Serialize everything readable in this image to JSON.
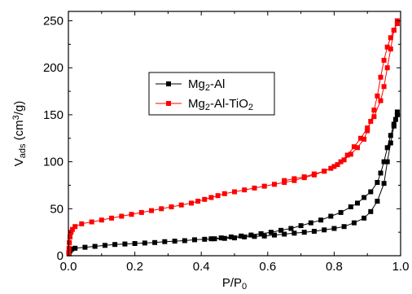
{
  "chart_data": {
    "type": "scatter",
    "xlabel": {
      "main": "P/P",
      "sub": "0"
    },
    "ylabel": {
      "main": "V",
      "sub": "ads",
      "unit_pre": " (cm",
      "sup": "3",
      "unit_post": "/g)"
    },
    "xlim": [
      0.0,
      1.0
    ],
    "ylim": [
      0,
      260
    ],
    "xticks": [
      "0.0",
      "0.2",
      "0.4",
      "0.6",
      "0.8",
      "1.0"
    ],
    "yticks": [
      "0",
      "50",
      "100",
      "150",
      "200",
      "250"
    ],
    "legend": {
      "position": "top-left"
    },
    "series": [
      {
        "name": {
          "p1": "Mg",
          "s1": "2",
          "p2": "-Al",
          "s2": "",
          "p3": ""
        },
        "color": "#000000",
        "adsorption": {
          "x": [
            0.002,
            0.005,
            0.01,
            0.02,
            0.05,
            0.08,
            0.11,
            0.14,
            0.17,
            0.2,
            0.23,
            0.26,
            0.29,
            0.32,
            0.35,
            0.38,
            0.41,
            0.44,
            0.47,
            0.5,
            0.53,
            0.56,
            0.59,
            0.62,
            0.65,
            0.68,
            0.71,
            0.74,
            0.77,
            0.8,
            0.83,
            0.86,
            0.89,
            0.91,
            0.93,
            0.95,
            0.96,
            0.97,
            0.98,
            0.985,
            0.99
          ],
          "y": [
            2,
            5,
            7,
            8,
            9,
            10,
            11,
            12,
            12.5,
            13,
            13.5,
            14,
            15,
            15.5,
            16,
            17,
            17.5,
            18,
            18.5,
            19,
            20,
            20.5,
            21,
            22,
            23,
            24,
            25,
            26,
            27.5,
            29,
            31,
            35,
            40,
            47,
            58,
            77,
            100,
            120,
            138,
            145,
            150
          ]
        },
        "desorption": {
          "x": [
            0.99,
            0.98,
            0.97,
            0.96,
            0.95,
            0.94,
            0.93,
            0.91,
            0.89,
            0.87,
            0.85,
            0.82,
            0.79,
            0.76,
            0.73,
            0.7,
            0.67,
            0.64,
            0.61,
            0.58,
            0.55,
            0.52,
            0.49,
            0.46,
            0.43
          ],
          "y": [
            153,
            140,
            128,
            115,
            100,
            88,
            78,
            68,
            62,
            56,
            52,
            46,
            42,
            38,
            35,
            32,
            29,
            27,
            25,
            23.5,
            22,
            21,
            20,
            19,
            18
          ]
        }
      },
      {
        "name": {
          "p1": "Mg",
          "s1": "2",
          "p2": "-Al-TiO",
          "s2": "2",
          "p3": ""
        },
        "color": "#ff0000",
        "adsorption": {
          "x": [
            0.001,
            0.002,
            0.003,
            0.005,
            0.008,
            0.012,
            0.02,
            0.04,
            0.07,
            0.1,
            0.13,
            0.16,
            0.19,
            0.22,
            0.25,
            0.28,
            0.31,
            0.34,
            0.37,
            0.39,
            0.41,
            0.43,
            0.45,
            0.47,
            0.5,
            0.53,
            0.56,
            0.59,
            0.62,
            0.65,
            0.68,
            0.71,
            0.74,
            0.77,
            0.8,
            0.82,
            0.84,
            0.86,
            0.88,
            0.9,
            0.92,
            0.94,
            0.95,
            0.96,
            0.97,
            0.98,
            0.99
          ],
          "y": [
            3,
            8,
            14,
            20,
            25,
            28,
            31,
            34,
            36,
            38,
            40,
            42,
            44,
            46,
            48,
            50,
            52,
            54,
            56,
            58,
            60,
            62,
            64,
            66,
            68,
            70,
            72,
            74,
            76,
            78,
            80,
            83,
            86,
            90,
            95,
            100,
            107,
            116,
            125,
            136,
            148,
            165,
            180,
            200,
            220,
            240,
            250
          ]
        },
        "desorption": {
          "x": [
            0.99,
            0.98,
            0.97,
            0.96,
            0.95,
            0.94,
            0.93,
            0.92,
            0.91,
            0.9,
            0.89,
            0.87,
            0.85,
            0.83,
            0.81,
            0.79,
            0.77,
            0.74,
            0.71,
            0.68,
            0.65
          ],
          "y": [
            247,
            240,
            232,
            222,
            208,
            190,
            170,
            155,
            143,
            133,
            124,
            115,
            108,
            102,
            97,
            93,
            90,
            87,
            84,
            82,
            80
          ]
        }
      }
    ]
  }
}
